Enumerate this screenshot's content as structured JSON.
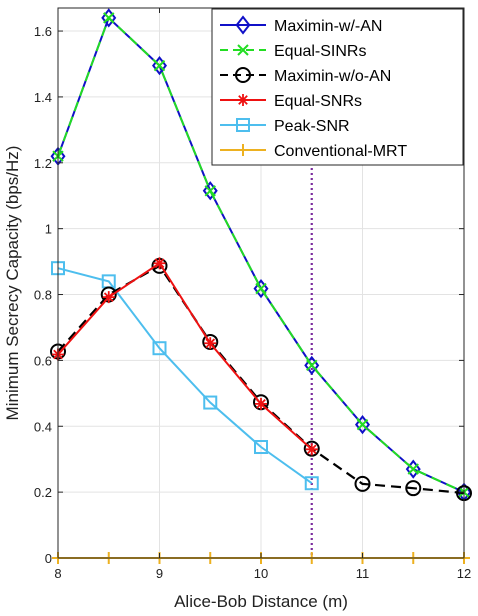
{
  "chart_data": {
    "type": "line",
    "title": "",
    "xlabel": "Alice-Bob Distance (m)",
    "ylabel": "Minimum Secrecy Capacity (bps/Hz)",
    "xlim": [
      8,
      12
    ],
    "ylim": [
      0,
      1.67
    ],
    "xticks": [
      8,
      9,
      10,
      11,
      12
    ],
    "yticks": [
      0,
      0.2,
      0.4,
      0.6,
      0.8,
      1,
      1.2,
      1.4,
      1.6
    ],
    "xtick_labels": [
      "8",
      "9",
      "10",
      "11",
      "12"
    ],
    "ytick_labels": [
      "0",
      "0.2",
      "0.4",
      "0.6",
      "0.8",
      "1",
      "1.2",
      "1.4",
      "1.6"
    ],
    "grid": true,
    "legend_position": "top-right",
    "vertical_reference_line": {
      "x": 10.5,
      "color": "#7B2C9E",
      "style": "dotted"
    },
    "series": [
      {
        "name": "Maximin-w/-AN",
        "color": "#1010C8",
        "dash": "solid",
        "marker": "diamond",
        "x": [
          8,
          8.5,
          9,
          9.5,
          10,
          10.5,
          11,
          11.5,
          12
        ],
        "y": [
          1.22,
          1.64,
          1.495,
          1.115,
          0.818,
          0.585,
          0.405,
          0.27,
          0.2
        ]
      },
      {
        "name": "Equal-SINRs",
        "color": "#22DD22",
        "dash": "dashed",
        "marker": "x",
        "x": [
          8,
          8.5,
          9,
          9.5,
          10,
          10.5,
          11,
          11.5,
          12
        ],
        "y": [
          1.22,
          1.64,
          1.495,
          1.115,
          0.818,
          0.585,
          0.405,
          0.27,
          0.2
        ]
      },
      {
        "name": "Maximin-w/o-AN",
        "color": "#000000",
        "dash": "dashed",
        "marker": "circle",
        "x": [
          8,
          8.5,
          9,
          9.5,
          10,
          10.5,
          11,
          11.5,
          12
        ],
        "y": [
          0.627,
          0.8,
          0.887,
          0.656,
          0.473,
          0.332,
          0.225,
          0.212,
          0.197
        ]
      },
      {
        "name": "Equal-SNRs",
        "color": "#EE1111",
        "dash": "solid",
        "marker": "star",
        "x": [
          8,
          8.5,
          9,
          9.5,
          10,
          10.5
        ],
        "y": [
          0.618,
          0.792,
          0.895,
          0.652,
          0.468,
          0.33
        ]
      },
      {
        "name": "Peak-SNR",
        "color": "#4DBEEE",
        "dash": "solid",
        "marker": "square",
        "x": [
          8,
          8.5,
          9,
          9.5,
          10,
          10.5
        ],
        "y": [
          0.88,
          0.84,
          0.637,
          0.472,
          0.337,
          0.227
        ]
      },
      {
        "name": "Conventional-MRT",
        "color": "#EDB120",
        "dash": "solid",
        "marker": "plus",
        "x": [
          8,
          8.5,
          9,
          9.5,
          10,
          10.5,
          11,
          11.5,
          12
        ],
        "y": [
          0,
          0,
          0,
          0,
          0,
          0,
          0,
          0,
          0
        ]
      }
    ]
  }
}
